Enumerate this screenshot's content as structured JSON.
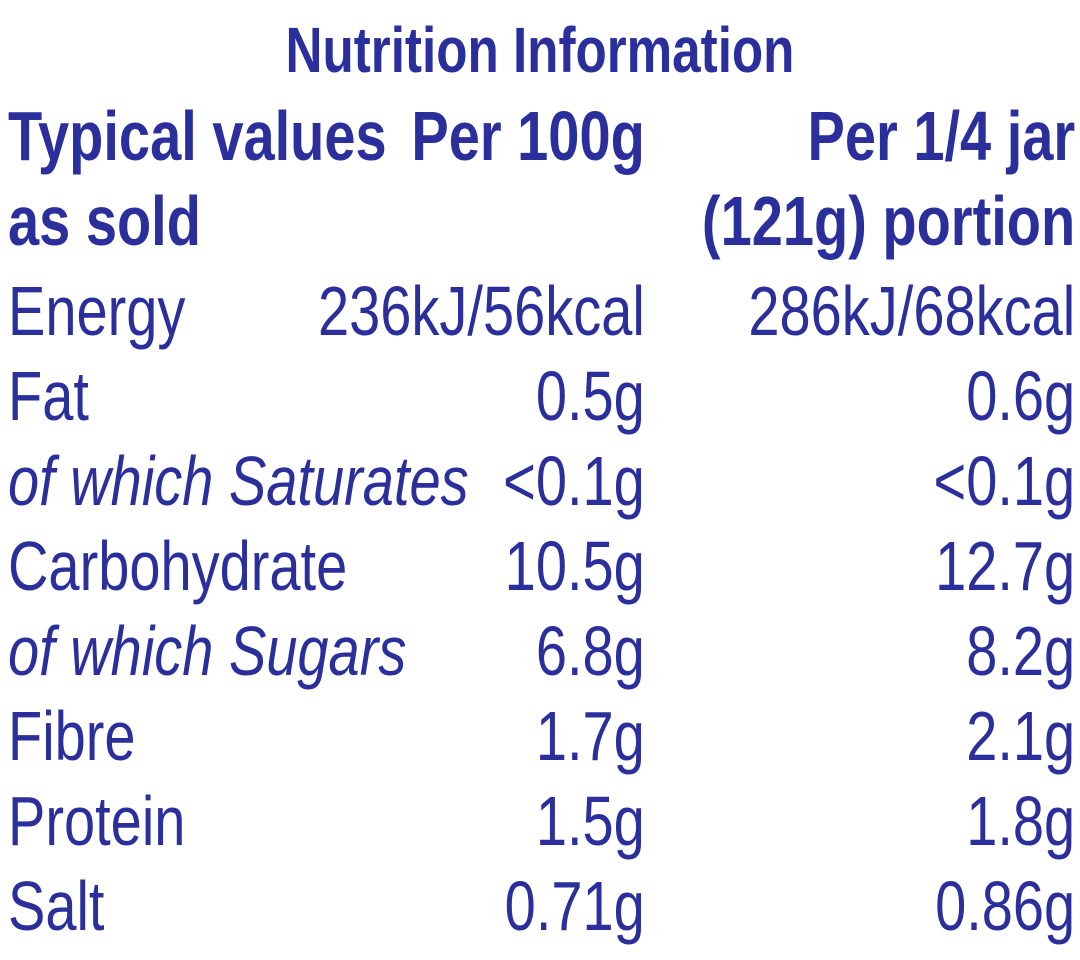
{
  "title": "Nutrition Information",
  "header": {
    "rows": [
      [
        "Typical values",
        "Per 100g",
        "Per 1/4 jar"
      ],
      [
        "as sold",
        null,
        "(121g) portion"
      ]
    ]
  },
  "rows": [
    {
      "cells": [
        "Energy",
        "236kJ/56kcal",
        "286kJ/68kcal"
      ],
      "italic": false
    },
    {
      "cells": [
        "Fat",
        "0.5g",
        "0.6g"
      ],
      "italic": false
    },
    {
      "cells": [
        "of which Saturates",
        "<0.1g",
        "<0.1g"
      ],
      "italic": true
    },
    {
      "cells": [
        "Carbohydrate",
        "10.5g",
        "12.7g"
      ],
      "italic": false
    },
    {
      "cells": [
        "of which Sugars",
        "6.8g",
        "8.2g"
      ],
      "italic": true
    },
    {
      "cells": [
        "Fibre",
        "1.7g",
        "2.1g"
      ],
      "italic": false
    },
    {
      "cells": [
        "Protein",
        "1.5g",
        "1.8g"
      ],
      "italic": false
    },
    {
      "cells": [
        "Salt",
        "0.71g",
        "0.86g"
      ],
      "italic": false
    }
  ]
}
